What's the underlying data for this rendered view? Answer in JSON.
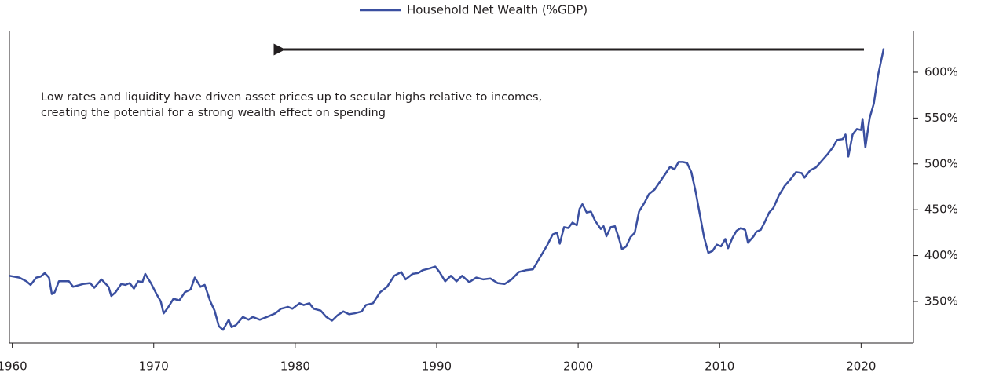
{
  "chart_data": {
    "type": "line",
    "series": [
      {
        "name": "Household Net Wealth (%GDP)",
        "color": "#3a4fa0",
        "x": [
          1959.8,
          1960.5,
          1961,
          1961.3,
          1961.7,
          1962,
          1962.3,
          1962.6,
          1962.8,
          1963,
          1963.3,
          1964,
          1964.3,
          1965,
          1965.5,
          1965.8,
          1966.3,
          1966.8,
          1967,
          1967.3,
          1967.7,
          1968,
          1968.3,
          1968.6,
          1968.9,
          1969.2,
          1969.4,
          1969.8,
          1970.2,
          1970.5,
          1970.7,
          1971,
          1971.4,
          1971.8,
          1972.2,
          1972.6,
          1972.9,
          1973.3,
          1973.6,
          1974,
          1974.3,
          1974.6,
          1974.9,
          1975.3,
          1975.5,
          1975.8,
          1976.3,
          1976.7,
          1977,
          1977.5,
          1978,
          1978.6,
          1979,
          1979.5,
          1979.8,
          1980.3,
          1980.6,
          1981,
          1981.3,
          1981.8,
          1982.2,
          1982.6,
          1983,
          1983.4,
          1983.8,
          1984.2,
          1984.7,
          1985,
          1985.5,
          1986,
          1986.5,
          1987,
          1987.5,
          1987.8,
          1988.3,
          1988.7,
          1989,
          1989.5,
          1989.9,
          1990.2,
          1990.6,
          1991,
          1991.4,
          1991.8,
          1992.3,
          1992.8,
          1993.3,
          1993.8,
          1994.3,
          1994.8,
          1995.3,
          1995.8,
          1996.3,
          1996.8,
          1997.3,
          1997.8,
          1998.2,
          1998.5,
          1998.7,
          1999,
          1999.3,
          1999.6,
          1999.9,
          2000.1,
          2000.3,
          2000.6,
          2000.9,
          2001.2,
          2001.6,
          2001.8,
          2002,
          2002.3,
          2002.6,
          2002.9,
          2003.1,
          2003.4,
          2003.7,
          2004,
          2004.3,
          2004.7,
          2005,
          2005.4,
          2005.8,
          2006.2,
          2006.5,
          2006.8,
          2007.1,
          2007.4,
          2007.7,
          2008,
          2008.3,
          2008.6,
          2008.9,
          2009.2,
          2009.5,
          2009.8,
          2010.1,
          2010.4,
          2010.6,
          2010.9,
          2011.2,
          2011.5,
          2011.8,
          2012,
          2012.4,
          2012.6,
          2012.9,
          2013.2,
          2013.5,
          2013.8,
          2014.2,
          2014.6,
          2015,
          2015.4,
          2015.8,
          2016,
          2016.4,
          2016.8,
          2017.2,
          2017.6,
          2018,
          2018.3,
          2018.7,
          2018.9,
          2019.1,
          2019.4,
          2019.7,
          2020,
          2020.1,
          2020.3,
          2020.6,
          2020.9,
          2021.2,
          2021.6
        ],
        "values": [
          378,
          376,
          372,
          368,
          376,
          377,
          381,
          376,
          358,
          360,
          372,
          372,
          366,
          369,
          370,
          365,
          374,
          366,
          356,
          360,
          369,
          368,
          370,
          364,
          372,
          371,
          380,
          370,
          358,
          350,
          337,
          343,
          353,
          351,
          360,
          363,
          376,
          366,
          368,
          350,
          340,
          323,
          319,
          330,
          322,
          324,
          333,
          330,
          333,
          330,
          333,
          337,
          342,
          344,
          342,
          348,
          346,
          348,
          342,
          340,
          333,
          329,
          335,
          339,
          336,
          337,
          339,
          346,
          348,
          360,
          366,
          378,
          382,
          374,
          380,
          381,
          384,
          386,
          388,
          382,
          372,
          378,
          372,
          378,
          371,
          376,
          374,
          375,
          370,
          369,
          374,
          382,
          384,
          385,
          398,
          411,
          423,
          425,
          413,
          431,
          430,
          436,
          433,
          451,
          456,
          447,
          448,
          438,
          429,
          432,
          421,
          431,
          432,
          418,
          407,
          410,
          420,
          425,
          448,
          458,
          467,
          472,
          481,
          490,
          497,
          494,
          502,
          502,
          501,
          491,
          470,
          445,
          420,
          403,
          405,
          412,
          410,
          418,
          408,
          419,
          427,
          430,
          428,
          414,
          421,
          426,
          428,
          437,
          447,
          452,
          466,
          476,
          483,
          491,
          490,
          485,
          493,
          496,
          503,
          510,
          518,
          526,
          527,
          532,
          508,
          532,
          538,
          537,
          549,
          518,
          550,
          566,
          597,
          626
        ]
      }
    ],
    "xlim": [
      1959.8,
      2023.7
    ],
    "xticks": [
      1960,
      1970,
      1980,
      1990,
      2000,
      2010,
      2020
    ],
    "ylim": [
      304.6,
      644.5
    ],
    "yticks": [
      {
        "value": 350,
        "label": "350%"
      },
      {
        "value": 400,
        "label": "400%"
      },
      {
        "value": 450,
        "label": "450%"
      },
      {
        "value": 500,
        "label": "500%"
      },
      {
        "value": 550,
        "label": "550%"
      },
      {
        "value": 600,
        "label": "600%"
      }
    ],
    "annotations": [
      "Low rates and liquidity have driven asset prices up to secular highs relative to incomes,",
      "creating the potential for a strong wealth effect on spending"
    ],
    "legend": "top"
  }
}
